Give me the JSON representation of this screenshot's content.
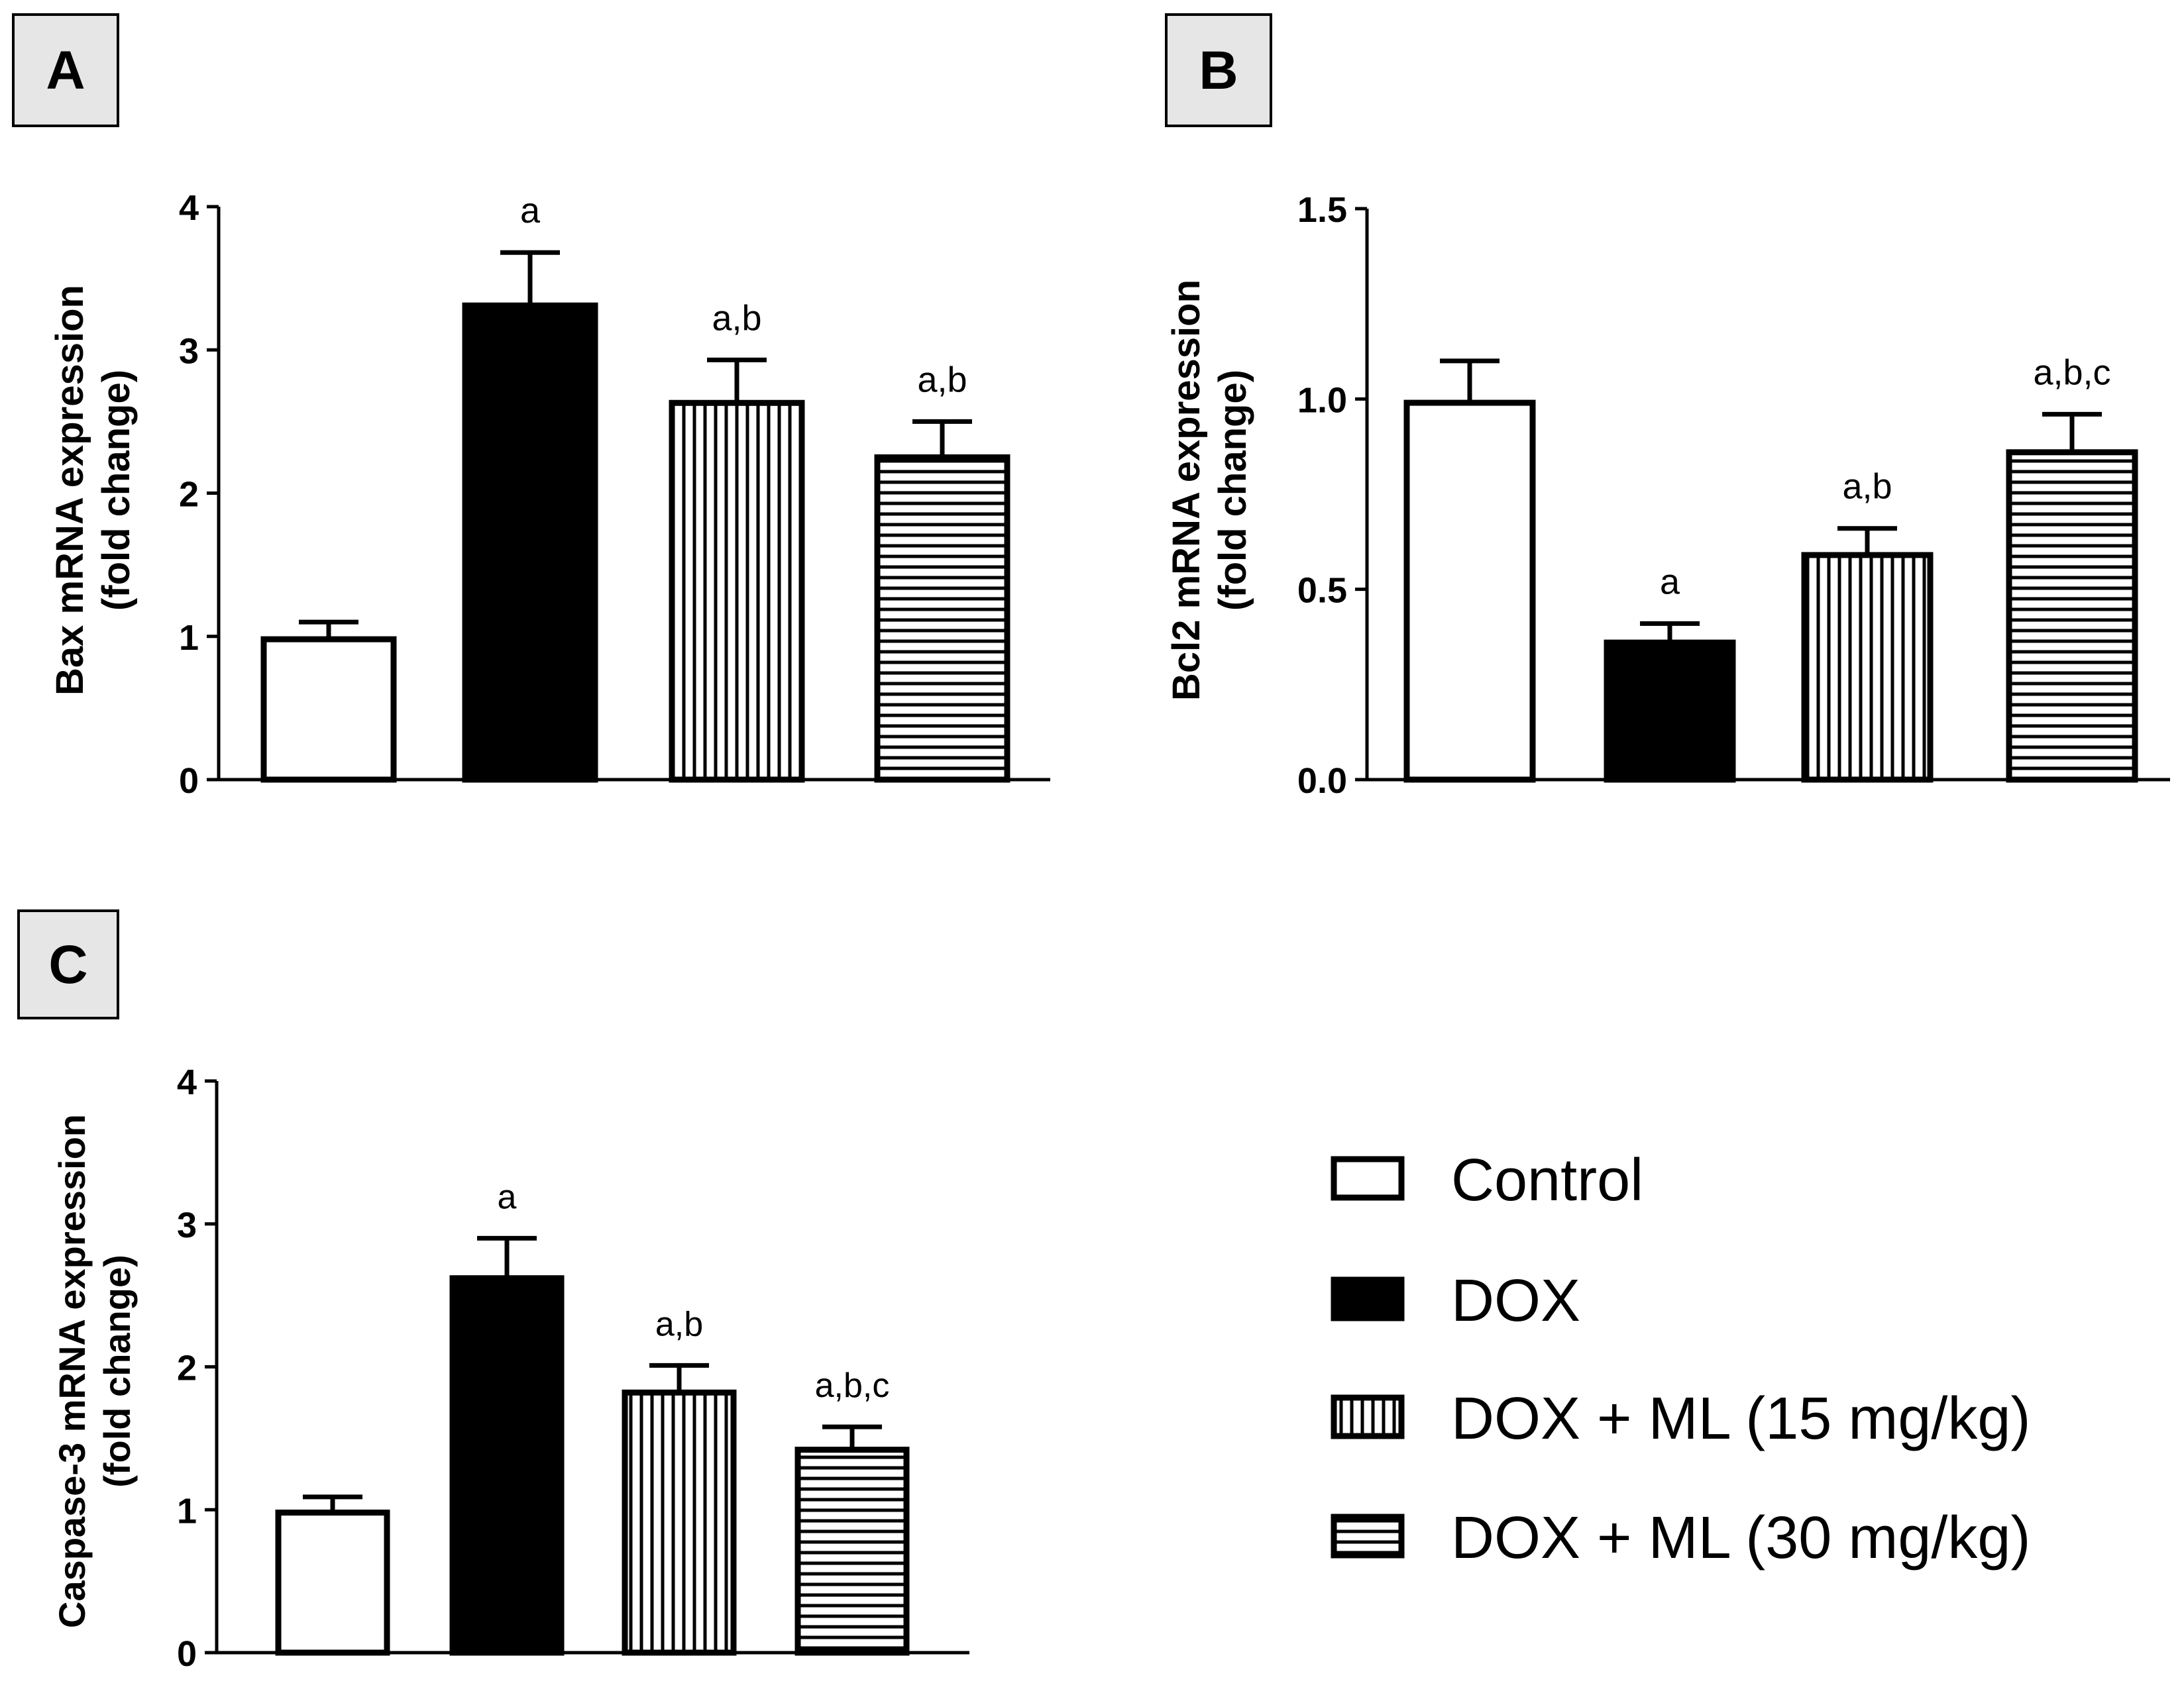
{
  "colors": {
    "ink": "#000000",
    "panel_label_bg": "#e6e6e6",
    "bar_fill": "#ffffff"
  },
  "legend": {
    "items": [
      {
        "label": "Control",
        "pattern": "open"
      },
      {
        "label": "DOX",
        "pattern": "solid"
      },
      {
        "label": "DOX + ML (15 mg/kg)",
        "pattern": "vertical"
      },
      {
        "label": "DOX + ML (30 mg/kg)",
        "pattern": "horizontal"
      }
    ]
  },
  "chart_data": [
    {
      "panel": "A",
      "type": "bar",
      "ylabel": "Bax mRNA expression",
      "ylabel2": "(fold change)",
      "ylim": [
        0,
        4
      ],
      "yticks": [
        "0",
        "1",
        "2",
        "3",
        "4"
      ],
      "categories": [
        "Control",
        "DOX",
        "DOX + ML (15 mg/kg)",
        "DOX + ML (30 mg/kg)"
      ],
      "values": [
        0.98,
        3.31,
        2.63,
        2.25
      ],
      "errors": [
        0.12,
        0.37,
        0.3,
        0.25
      ],
      "annotations": [
        "",
        "a",
        "a,b",
        "a,b"
      ]
    },
    {
      "panel": "B",
      "type": "bar",
      "ylabel": "Bcl2 mRNA expression",
      "ylabel2": "(fold change)",
      "ylim": [
        0,
        1.5
      ],
      "yticks": [
        "0.0",
        "0.5",
        "1.0",
        "1.5"
      ],
      "categories": [
        "Control",
        "DOX",
        "DOX + ML (15 mg/kg)",
        "DOX + ML (30 mg/kg)"
      ],
      "values": [
        0.99,
        0.36,
        0.59,
        0.86
      ],
      "errors": [
        0.11,
        0.05,
        0.07,
        0.1
      ],
      "annotations": [
        "",
        "a",
        "a,b",
        "a,b,c"
      ]
    },
    {
      "panel": "C",
      "type": "bar",
      "ylabel": "Caspase-3 mRNA expression",
      "ylabel2": "(fold change)",
      "ylim": [
        0,
        4
      ],
      "yticks": [
        "0",
        "1",
        "2",
        "3",
        "4"
      ],
      "categories": [
        "Control",
        "DOX",
        "DOX + ML (15 mg/kg)",
        "DOX + ML (30 mg/kg)"
      ],
      "values": [
        0.98,
        2.62,
        1.82,
        1.42
      ],
      "errors": [
        0.11,
        0.28,
        0.19,
        0.16
      ],
      "annotations": [
        "",
        "a",
        "a,b",
        "a,b,c"
      ]
    }
  ]
}
